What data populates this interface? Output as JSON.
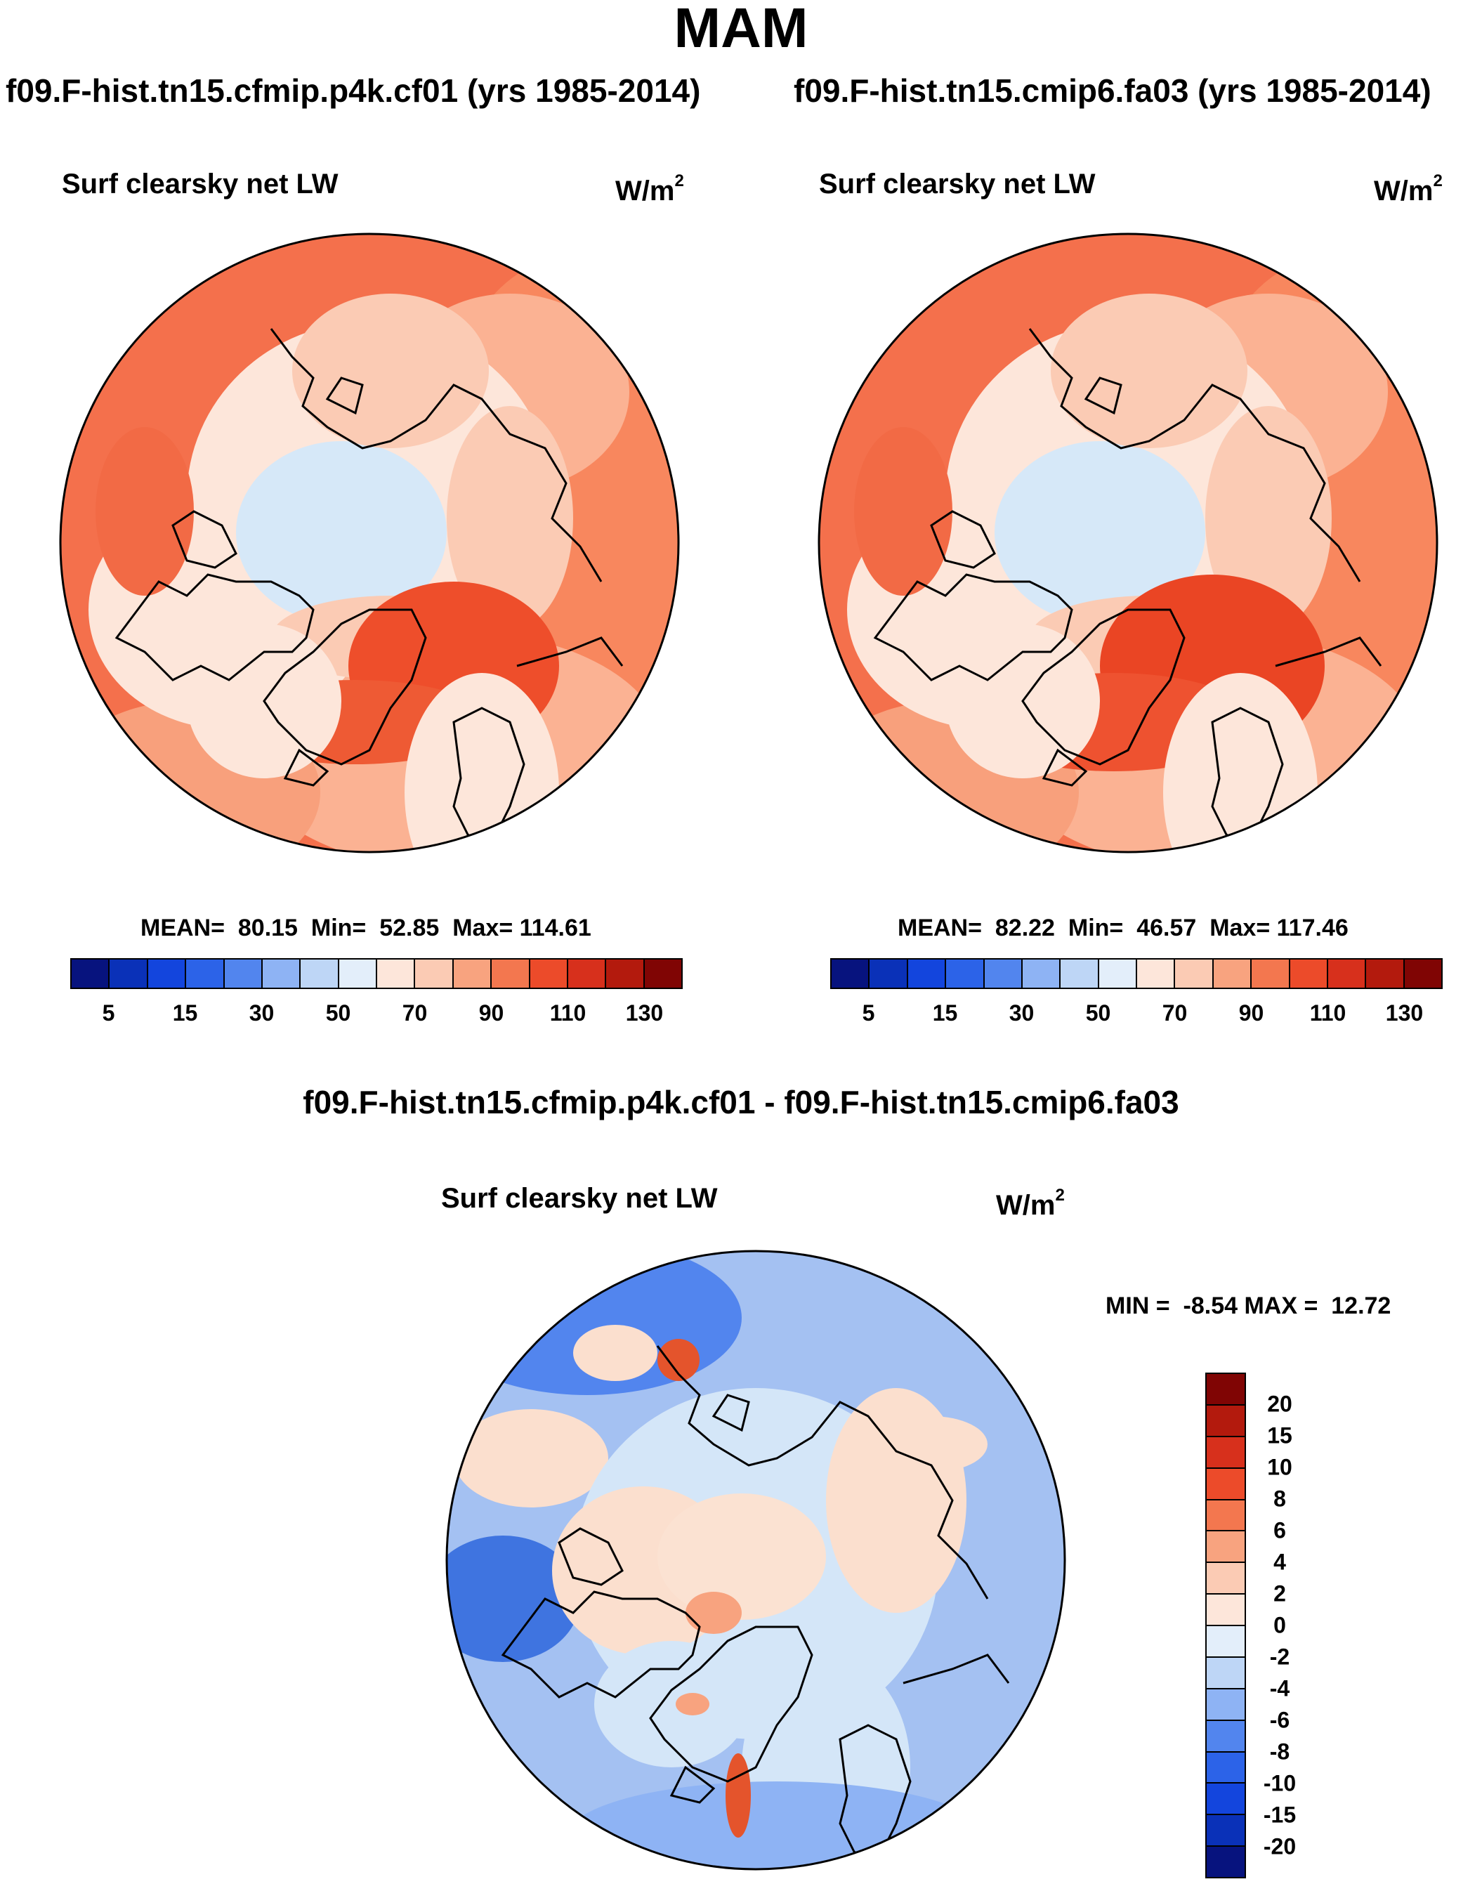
{
  "page": {
    "title": "MAM",
    "diff_title": "f09.F-hist.tn15.cfmip.p4k.cf01 - f09.F-hist.tn15.cmip6.fa03"
  },
  "panels": [
    {
      "case_title": "f09.F-hist.tn15.cfmip.p4k.cf01 (yrs 1985-2014)",
      "variable": "Surf clearsky net LW",
      "units_base": "W/m",
      "units_exp": "2",
      "mean_label": "MEAN=",
      "mean": "80.15",
      "min_label": "Min=",
      "min": "52.85",
      "max_label": "Max=",
      "max": "114.61"
    },
    {
      "case_title": "f09.F-hist.tn15.cmip6.fa03 (yrs 1985-2014)",
      "variable": "Surf clearsky net LW",
      "units_base": "W/m",
      "units_exp": "2",
      "mean_label": "MEAN=",
      "mean": "82.22",
      "min_label": "Min=",
      "min": "46.57",
      "max_label": "Max=",
      "max": "117.46"
    }
  ],
  "diff_panel": {
    "variable": "Surf clearsky net LW",
    "units_base": "W/m",
    "units_exp": "2",
    "min_label": "MIN =",
    "min": "-8.54",
    "max_label": "MAX =",
    "max": "12.72"
  },
  "colors": {
    "ocean_main": "#f4704c",
    "land": "#fde6da",
    "arctic_ice": "#d6e8f8",
    "mid": "#fbb293",
    "hot": "#ee4e2b",
    "diff_base": "#a4c1f2",
    "diff_ice": "#d4e6f8",
    "diff_land": "#fbdfce",
    "diff_dark": "#3f74e0",
    "diff_red": "#e4542c"
  },
  "chart_data": [
    {
      "type": "heatmap",
      "title": "Surf clearsky net LW",
      "units": "W/m2",
      "projection": "north-polar-stereographic",
      "colorbar_orientation": "horizontal",
      "colorbar_levels": [
        5,
        10,
        15,
        20,
        30,
        40,
        50,
        60,
        70,
        80,
        90,
        100,
        110,
        120,
        130
      ],
      "colorbar_ticks": [
        "5",
        "15",
        "30",
        "50",
        "70",
        "90",
        "110",
        "130"
      ],
      "colorbar_colors": [
        "#07137e",
        "#0a31b8",
        "#1345dd",
        "#2c63e8",
        "#5285ee",
        "#8eb3f4",
        "#bed6f6",
        "#e3eefa",
        "#fde6da",
        "#fbcbb4",
        "#f8a37f",
        "#f3774f",
        "#ec4b2a",
        "#d7301c",
        "#b31a0d",
        "#800504"
      ],
      "mean": 80.15,
      "min": 52.85,
      "max": 114.61
    },
    {
      "type": "heatmap",
      "title": "Surf clearsky net LW",
      "units": "W/m2",
      "projection": "north-polar-stereographic",
      "colorbar_orientation": "horizontal",
      "colorbar_levels": [
        5,
        10,
        15,
        20,
        30,
        40,
        50,
        60,
        70,
        80,
        90,
        100,
        110,
        120,
        130
      ],
      "colorbar_ticks": [
        "5",
        "15",
        "30",
        "50",
        "70",
        "90",
        "110",
        "130"
      ],
      "colorbar_colors": [
        "#07137e",
        "#0a31b8",
        "#1345dd",
        "#2c63e8",
        "#5285ee",
        "#8eb3f4",
        "#bed6f6",
        "#e3eefa",
        "#fde6da",
        "#fbcbb4",
        "#f8a37f",
        "#f3774f",
        "#ec4b2a",
        "#d7301c",
        "#b31a0d",
        "#800504"
      ],
      "mean": 82.22,
      "min": 46.57,
      "max": 117.46
    },
    {
      "type": "heatmap",
      "title": "Surf clearsky net LW",
      "units": "W/m2",
      "projection": "north-polar-stereographic",
      "colorbar_orientation": "vertical",
      "colorbar_ticks": [
        "20",
        "15",
        "10",
        "8",
        "6",
        "4",
        "2",
        "0",
        "-2",
        "-4",
        "-6",
        "-8",
        "-10",
        "-15",
        "-20"
      ],
      "colorbar_colors": [
        "#800504",
        "#b31a0d",
        "#d7301c",
        "#ec4b2a",
        "#f3774f",
        "#f8a37f",
        "#fbcbb4",
        "#fde6da",
        "#e3eefa",
        "#bed6f6",
        "#8eb3f4",
        "#5285ee",
        "#2c63e8",
        "#1345dd",
        "#0a31b8",
        "#07137e"
      ],
      "min": -8.54,
      "max": 12.72
    }
  ]
}
